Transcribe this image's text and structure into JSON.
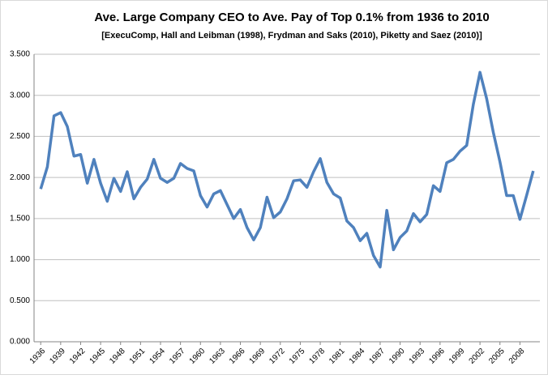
{
  "chart_data": {
    "type": "line",
    "title": "Ave. Large Company CEO to Ave. Pay of Top 0.1% from 1936 to 2010",
    "subtitle": "[ExecuComp, Hall and Leibman (1998), Frydman and Saks (2010), Piketty and Saez (2010)]",
    "x": [
      1936,
      1937,
      1938,
      1939,
      1940,
      1941,
      1942,
      1943,
      1944,
      1945,
      1946,
      1947,
      1948,
      1949,
      1950,
      1951,
      1952,
      1953,
      1954,
      1955,
      1956,
      1957,
      1958,
      1959,
      1960,
      1961,
      1962,
      1963,
      1964,
      1965,
      1966,
      1967,
      1968,
      1969,
      1970,
      1971,
      1972,
      1973,
      1974,
      1975,
      1976,
      1977,
      1978,
      1979,
      1980,
      1981,
      1982,
      1983,
      1984,
      1985,
      1986,
      1987,
      1988,
      1989,
      1990,
      1991,
      1992,
      1993,
      1994,
      1995,
      1996,
      1997,
      1998,
      1999,
      2000,
      2001,
      2002,
      2003,
      2004,
      2005,
      2006,
      2007,
      2008,
      2009,
      2010
    ],
    "values": [
      1.86,
      2.13,
      2.75,
      2.79,
      2.62,
      2.26,
      2.28,
      1.93,
      2.22,
      1.93,
      1.71,
      1.99,
      1.83,
      2.07,
      1.74,
      1.88,
      1.98,
      2.22,
      1.99,
      1.94,
      1.99,
      2.17,
      2.11,
      2.08,
      1.78,
      1.64,
      1.8,
      1.84,
      1.67,
      1.5,
      1.61,
      1.39,
      1.24,
      1.39,
      1.76,
      1.51,
      1.58,
      1.74,
      1.96,
      1.97,
      1.88,
      2.07,
      2.23,
      1.94,
      1.8,
      1.75,
      1.47,
      1.39,
      1.23,
      1.32,
      1.05,
      0.91,
      1.6,
      1.12,
      1.27,
      1.35,
      1.56,
      1.46,
      1.55,
      1.9,
      1.83,
      2.18,
      2.22,
      2.32,
      2.39,
      2.89,
      3.28,
      2.96,
      2.55,
      2.19,
      1.78,
      1.78,
      1.49,
      1.78,
      2.08
    ],
    "color": "#4f81bd",
    "xlim": [
      1935,
      2011
    ],
    "xticks": [
      1936,
      1939,
      1942,
      1945,
      1948,
      1951,
      1954,
      1957,
      1960,
      1963,
      1966,
      1969,
      1972,
      1975,
      1978,
      1981,
      1984,
      1987,
      1990,
      1993,
      1996,
      1999,
      2002,
      2005,
      2008
    ],
    "ylim": [
      0,
      3.5
    ],
    "yticks": [
      {
        "value": 0,
        "label": "0.000"
      },
      {
        "value": 0.5,
        "label": "0.500"
      },
      {
        "value": 1,
        "label": "1.000"
      },
      {
        "value": 1.5,
        "label": "1.500"
      },
      {
        "value": 2,
        "label": "2.000"
      },
      {
        "value": 2.5,
        "label": "2.500"
      },
      {
        "value": 3,
        "label": "3.000"
      },
      {
        "value": 3.5,
        "label": "3.500"
      }
    ],
    "grid": true
  }
}
